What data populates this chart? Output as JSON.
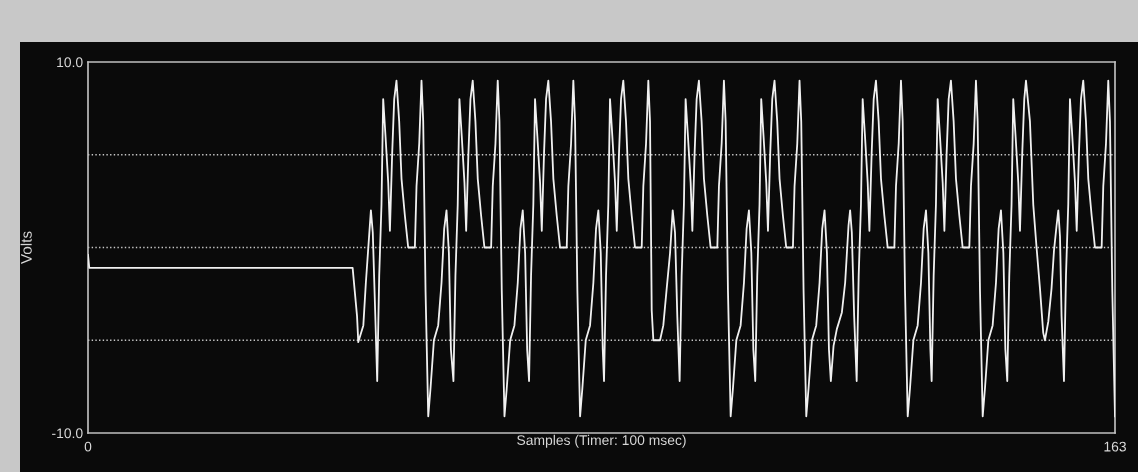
{
  "chart_data": {
    "type": "line",
    "xlabel": "Samples (Timer: 100 msec)",
    "ylabel": "Volts",
    "xlim": [
      0,
      163
    ],
    "ylim": [
      -10,
      10
    ],
    "xticks": [
      0,
      163
    ],
    "yticks": [
      {
        "value": -10,
        "label": "-10.0"
      },
      {
        "value": 10,
        "label": "10.0"
      }
    ],
    "line_style": "solid",
    "ref_lines": [
      {
        "axis": "y",
        "value": 5,
        "color": "#c8c8c8",
        "line_style": "dotted"
      },
      {
        "axis": "y",
        "value": 0,
        "color": "#c8c8c8",
        "line_style": "dotted"
      },
      {
        "axis": "y",
        "value": -5,
        "color": "#c8c8c8",
        "line_style": "dotted"
      }
    ],
    "series": [
      {
        "color": "#f0f0f0",
        "x": [
          0,
          0.2,
          42.0,
          42.7,
          42.9,
          43.7,
          44.1,
          44.9,
          45.2,
          45.6,
          45.9,
          46.22,
          46.58,
          46.85,
          47.22,
          47.65,
          47.92,
          48.28,
          48.6,
          48.96,
          49.39,
          49.76,
          50.3,
          50.82,
          51.88,
          52.14,
          52.57,
          52.93,
          53.2,
          53.57,
          54.0,
          54.36,
          54.9,
          55.58,
          56.11,
          56.53,
          56.9,
          57.28,
          57.6,
          58.0,
          58.32,
          58.68,
          58.95,
          59.32,
          59.75,
          60.02,
          60.38,
          60.7,
          61.06,
          61.49,
          61.86,
          62.4,
          62.92,
          63.98,
          64.24,
          64.67,
          65.03,
          65.3,
          65.67,
          66.1,
          66.46,
          67.0,
          67.68,
          68.21,
          68.63,
          69.0,
          69.38,
          69.7,
          70.0,
          70.32,
          70.68,
          70.95,
          71.32,
          71.75,
          72.02,
          72.38,
          72.7,
          73.06,
          73.49,
          73.86,
          74.4,
          74.92,
          75.98,
          76.24,
          76.67,
          77.03,
          77.3,
          77.67,
          78.1,
          78.46,
          79.0,
          79.68,
          80.21,
          80.63,
          81.0,
          81.38,
          81.7,
          81.9,
          82.22,
          82.58,
          82.85,
          83.22,
          83.65,
          83.92,
          84.28,
          84.6,
          84.96,
          85.39,
          85.76,
          86.3,
          86.82,
          87.88,
          88.14,
          88.57,
          88.93,
          89.2,
          89.47,
          89.73,
          90.79,
          91.31,
          91.85,
          92.38,
          92.8,
          93.17,
          93.53,
          93.9,
          94.22,
          94.58,
          94.85,
          95.22,
          95.65,
          95.92,
          96.28,
          96.6,
          96.96,
          97.39,
          97.76,
          98.3,
          98.82,
          99.88,
          100.14,
          100.57,
          100.93,
          101.2,
          101.57,
          102.0,
          102.36,
          102.9,
          103.58,
          104.11,
          104.53,
          104.9,
          105.28,
          105.6,
          105.9,
          106.22,
          106.58,
          106.85,
          107.22,
          107.65,
          107.92,
          108.28,
          108.6,
          108.96,
          109.39,
          109.76,
          110.3,
          110.82,
          111.88,
          112.14,
          112.57,
          112.93,
          113.2,
          113.57,
          114.0,
          114.36,
          114.9,
          115.58,
          116.11,
          116.53,
          116.9,
          117.28,
          117.6,
          117.9,
          118.33,
          118.85,
          119.65,
          120.17,
          120.71,
          120.96,
          121.23,
          121.6,
          122.0,
          122.32,
          122.68,
          122.95,
          123.32,
          123.75,
          124.02,
          124.38,
          124.7,
          125.06,
          125.49,
          125.86,
          126.4,
          126.92,
          127.98,
          128.24,
          128.67,
          129.03,
          129.3,
          129.67,
          130.1,
          130.46,
          131.0,
          131.68,
          132.21,
          132.63,
          133.0,
          133.38,
          133.7,
          133.9,
          134.22,
          134.58,
          134.85,
          135.22,
          135.65,
          135.92,
          136.28,
          136.6,
          136.96,
          137.39,
          137.76,
          138.3,
          138.82,
          139.88,
          140.14,
          140.57,
          140.93,
          141.2,
          141.57,
          142.0,
          142.36,
          142.9,
          143.58,
          144.11,
          144.53,
          144.9,
          145.28,
          145.6,
          145.9,
          146.22,
          146.58,
          146.85,
          147.22,
          147.65,
          147.92,
          148.28,
          148.6,
          148.87,
          149.5,
          150.03,
          150.55,
          151.09,
          151.61,
          151.88,
          152.41,
          152.93,
          153.31,
          153.73,
          154.0,
          154.27,
          154.52,
          154.9,
          155.22,
          155.58,
          155.85,
          156.22,
          156.65,
          156.92,
          157.28,
          157.6,
          157.96,
          158.39,
          158.76,
          159.3,
          159.82,
          160.88,
          161.14,
          161.57,
          161.93,
          162.2,
          162.57,
          163.0
        ],
        "values": [
          -0.4,
          -1.1,
          -1.1,
          -3.7,
          -5.1,
          -4.2,
          -1.9,
          2.0,
          0.8,
          -3.7,
          -7.2,
          -1.5,
          2.3,
          8.0,
          6.0,
          3.5,
          0.9,
          5.1,
          8.0,
          9.0,
          6.8,
          3.7,
          1.7,
          0,
          0,
          3.3,
          5.6,
          9.0,
          6.8,
          -2.3,
          -9.1,
          -7.6,
          -5.0,
          -4.2,
          -1.9,
          1.0,
          2.0,
          -0.3,
          -5.5,
          -7.2,
          -1.5,
          2.3,
          8.0,
          6.0,
          3.5,
          0.9,
          5.1,
          8.0,
          9.0,
          6.8,
          3.7,
          1.7,
          0,
          0,
          3.3,
          5.6,
          9.0,
          6.8,
          -2.3,
          -9.1,
          -7.6,
          -5.0,
          -4.2,
          -1.9,
          1.0,
          2.0,
          -0.3,
          -5.5,
          -7.2,
          -1.5,
          2.3,
          8.0,
          6.0,
          3.5,
          0.9,
          5.1,
          8.0,
          9.0,
          6.8,
          3.7,
          1.7,
          0,
          0,
          3.3,
          5.6,
          9.0,
          6.8,
          -2.3,
          -9.1,
          -7.6,
          -5.0,
          -4.2,
          -1.9,
          1.0,
          2.0,
          -0.3,
          -5.5,
          -7.2,
          -1.5,
          2.3,
          8.0,
          6.0,
          3.5,
          0.9,
          5.1,
          8.0,
          9.0,
          6.8,
          3.7,
          1.7,
          0,
          0,
          3.3,
          5.6,
          9.0,
          6.8,
          -3.4,
          -5.0,
          -5.0,
          -4.2,
          -2.2,
          -0.3,
          2.0,
          0.8,
          -3.7,
          -7.2,
          -1.5,
          2.3,
          8.0,
          6.0,
          3.5,
          0.9,
          5.1,
          8.0,
          9.0,
          6.8,
          3.7,
          1.7,
          0,
          0,
          3.3,
          5.6,
          9.0,
          6.8,
          -2.3,
          -9.1,
          -7.6,
          -5.0,
          -4.2,
          -1.9,
          1.0,
          2.0,
          -0.3,
          -5.5,
          -7.2,
          -1.5,
          2.3,
          8.0,
          6.0,
          3.5,
          0.9,
          5.1,
          8.0,
          9.0,
          6.8,
          3.7,
          1.7,
          0,
          0,
          3.3,
          5.6,
          9.0,
          6.8,
          -2.3,
          -9.1,
          -7.6,
          -5.0,
          -4.2,
          -1.9,
          1.0,
          2.0,
          -0.3,
          -5.5,
          -7.2,
          -5.3,
          -4.4,
          -3.5,
          -1.9,
          1.2,
          2.0,
          0.8,
          -3.7,
          -7.2,
          -1.5,
          2.3,
          8.0,
          6.0,
          3.5,
          0.9,
          5.1,
          8.0,
          9.0,
          6.8,
          3.7,
          1.7,
          0,
          0,
          3.3,
          5.6,
          9.0,
          6.8,
          -2.3,
          -9.1,
          -7.6,
          -5.0,
          -4.2,
          -1.9,
          1.0,
          2.0,
          -0.3,
          -5.5,
          -7.2,
          -1.5,
          2.3,
          8.0,
          6.0,
          3.5,
          0.9,
          5.1,
          8.0,
          9.0,
          6.8,
          3.7,
          1.7,
          0,
          0,
          3.3,
          5.6,
          9.0,
          6.8,
          -2.3,
          -9.1,
          -7.6,
          -5.0,
          -4.2,
          -1.9,
          1.0,
          2.0,
          -0.3,
          -5.5,
          -7.2,
          -1.5,
          2.3,
          8.0,
          6.0,
          3.5,
          0.9,
          5.1,
          8.0,
          9.0,
          6.8,
          2.3,
          0,
          -2.2,
          -4.6,
          -5.0,
          -4.0,
          -2.2,
          -0.2,
          1.2,
          2.0,
          0.6,
          -3.7,
          -7.2,
          -1.5,
          2.3,
          8.0,
          6.0,
          3.5,
          0.9,
          5.1,
          8.0,
          9.0,
          6.8,
          3.7,
          1.7,
          0,
          0,
          3.3,
          5.6,
          9.0,
          6.8,
          -2.3,
          -9.1
        ]
      }
    ]
  }
}
